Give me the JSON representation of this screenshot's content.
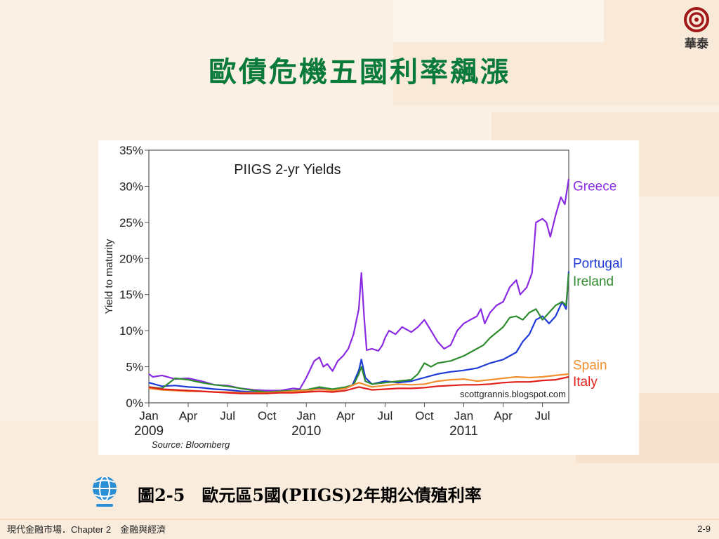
{
  "slide": {
    "title": "歐債危機五國利率飆漲",
    "logo_text": "華泰",
    "caption": "圖2-5　歐元區5國(PIIGS)2年期公債殖利率",
    "footer_left": "現代金融市場．Chapter 2　金融與經濟",
    "page_number": "2-9"
  },
  "chart_data": {
    "type": "line",
    "title": "PIIGS 2-yr Yields",
    "ylabel": "Yield to maturity",
    "source": "Source: Bloomberg",
    "watermark": "scottgrannis.blogspot.com",
    "ylim": [
      0,
      35
    ],
    "xlim": [
      0,
      31
    ],
    "y_ticks": [
      "0%",
      "5%",
      "10%",
      "15%",
      "20%",
      "25%",
      "30%",
      "35%"
    ],
    "x_ticks": [
      {
        "x": 0,
        "label": "Jan"
      },
      {
        "x": 3,
        "label": "Apr"
      },
      {
        "x": 6,
        "label": "Jul"
      },
      {
        "x": 9,
        "label": "Oct"
      },
      {
        "x": 12,
        "label": "Jan"
      },
      {
        "x": 15,
        "label": "Apr"
      },
      {
        "x": 18,
        "label": "Jul"
      },
      {
        "x": 21,
        "label": "Oct"
      },
      {
        "x": 24,
        "label": "Jan"
      },
      {
        "x": 27,
        "label": "Apr"
      },
      {
        "x": 30,
        "label": "Jul"
      }
    ],
    "year_labels": [
      {
        "x": 0,
        "label": "2009"
      },
      {
        "x": 12,
        "label": "2010"
      },
      {
        "x": 24,
        "label": "2011"
      }
    ],
    "series": [
      {
        "name": "Greece",
        "color": "#8a2be2",
        "points": [
          [
            0,
            4.0
          ],
          [
            0.3,
            3.6
          ],
          [
            1,
            3.8
          ],
          [
            2,
            3.3
          ],
          [
            3,
            3.4
          ],
          [
            4,
            3.0
          ],
          [
            5,
            2.5
          ],
          [
            6,
            2.4
          ],
          [
            7,
            2.0
          ],
          [
            8,
            1.8
          ],
          [
            9,
            1.7
          ],
          [
            10,
            1.7
          ],
          [
            11,
            2.0
          ],
          [
            11.5,
            1.9
          ],
          [
            12,
            3.5
          ],
          [
            12.6,
            5.8
          ],
          [
            13,
            6.3
          ],
          [
            13.3,
            5.0
          ],
          [
            13.6,
            5.4
          ],
          [
            14,
            4.4
          ],
          [
            14.4,
            5.8
          ],
          [
            14.8,
            6.5
          ],
          [
            15.2,
            7.5
          ],
          [
            15.6,
            9.5
          ],
          [
            16,
            13.0
          ],
          [
            16.2,
            18.0
          ],
          [
            16.4,
            12.0
          ],
          [
            16.6,
            7.3
          ],
          [
            17,
            7.5
          ],
          [
            17.5,
            7.2
          ],
          [
            17.8,
            8.0
          ],
          [
            18,
            9.0
          ],
          [
            18.3,
            10.0
          ],
          [
            18.8,
            9.5
          ],
          [
            19.3,
            10.5
          ],
          [
            20,
            9.8
          ],
          [
            20.5,
            10.5
          ],
          [
            21,
            11.5
          ],
          [
            21.5,
            10.0
          ],
          [
            22,
            8.5
          ],
          [
            22.5,
            7.5
          ],
          [
            23,
            8.0
          ],
          [
            23.5,
            10.0
          ],
          [
            24,
            11.0
          ],
          [
            24.5,
            11.5
          ],
          [
            25,
            12.0
          ],
          [
            25.3,
            13.0
          ],
          [
            25.6,
            11.0
          ],
          [
            26,
            12.5
          ],
          [
            26.5,
            13.5
          ],
          [
            27,
            14.0
          ],
          [
            27.5,
            16.0
          ],
          [
            28,
            17.0
          ],
          [
            28.3,
            15.0
          ],
          [
            28.8,
            16.0
          ],
          [
            29.2,
            18.0
          ],
          [
            29.5,
            25.0
          ],
          [
            30,
            25.5
          ],
          [
            30.3,
            25.0
          ],
          [
            30.6,
            23.0
          ],
          [
            31,
            26.0
          ],
          [
            31.4,
            28.5
          ],
          [
            31.7,
            27.5
          ],
          [
            32,
            31.0
          ]
        ]
      },
      {
        "name": "Portugal",
        "color": "#1f3ad6",
        "points": [
          [
            0,
            2.8
          ],
          [
            1,
            2.3
          ],
          [
            2,
            2.4
          ],
          [
            3,
            2.2
          ],
          [
            4,
            2.1
          ],
          [
            5,
            1.9
          ],
          [
            6,
            1.8
          ],
          [
            7,
            1.6
          ],
          [
            8,
            1.5
          ],
          [
            9,
            1.4
          ],
          [
            10,
            1.5
          ],
          [
            11,
            1.5
          ],
          [
            12,
            1.6
          ],
          [
            13,
            2.0
          ],
          [
            14,
            1.7
          ],
          [
            15,
            2.0
          ],
          [
            15.5,
            2.4
          ],
          [
            16,
            4.5
          ],
          [
            16.2,
            6.0
          ],
          [
            16.5,
            3.5
          ],
          [
            17,
            2.6
          ],
          [
            18,
            3.0
          ],
          [
            19,
            2.8
          ],
          [
            20,
            3.0
          ],
          [
            21,
            3.5
          ],
          [
            22,
            4.0
          ],
          [
            23,
            4.3
          ],
          [
            24,
            4.5
          ],
          [
            25,
            4.8
          ],
          [
            26,
            5.5
          ],
          [
            27,
            6.0
          ],
          [
            28,
            7.0
          ],
          [
            28.5,
            8.5
          ],
          [
            29,
            9.5
          ],
          [
            29.5,
            11.5
          ],
          [
            30,
            12.0
          ],
          [
            30.5,
            11.0
          ],
          [
            31,
            12.0
          ],
          [
            31.5,
            14.0
          ],
          [
            31.8,
            13.0
          ],
          [
            32,
            18.2
          ]
        ]
      },
      {
        "name": "Ireland",
        "color": "#2e8b2e",
        "points": [
          [
            0,
            2.2
          ],
          [
            1,
            2.0
          ],
          [
            2,
            3.4
          ],
          [
            3,
            3.2
          ],
          [
            4,
            2.8
          ],
          [
            5,
            2.5
          ],
          [
            6,
            2.3
          ],
          [
            7,
            2.0
          ],
          [
            8,
            1.7
          ],
          [
            9,
            1.5
          ],
          [
            10,
            1.6
          ],
          [
            11,
            1.7
          ],
          [
            12,
            1.8
          ],
          [
            13,
            2.2
          ],
          [
            14,
            1.9
          ],
          [
            15,
            2.2
          ],
          [
            15.6,
            2.5
          ],
          [
            16,
            4.0
          ],
          [
            16.2,
            5.0
          ],
          [
            16.5,
            3.0
          ],
          [
            17,
            2.6
          ],
          [
            18,
            2.8
          ],
          [
            19,
            3.0
          ],
          [
            20,
            3.2
          ],
          [
            20.5,
            4.0
          ],
          [
            21,
            5.5
          ],
          [
            21.5,
            5.0
          ],
          [
            22,
            5.5
          ],
          [
            23,
            5.8
          ],
          [
            24,
            6.5
          ],
          [
            25,
            7.5
          ],
          [
            25.5,
            8.0
          ],
          [
            26,
            9.0
          ],
          [
            27,
            10.5
          ],
          [
            27.5,
            11.8
          ],
          [
            28,
            12.0
          ],
          [
            28.5,
            11.5
          ],
          [
            29,
            12.5
          ],
          [
            29.5,
            13.0
          ],
          [
            30,
            11.5
          ],
          [
            30.5,
            12.5
          ],
          [
            31,
            13.5
          ],
          [
            31.5,
            14.0
          ],
          [
            31.8,
            13.5
          ],
          [
            32,
            18.0
          ]
        ]
      },
      {
        "name": "Spain",
        "color": "#f09030",
        "points": [
          [
            0,
            2.0
          ],
          [
            1,
            1.8
          ],
          [
            2,
            1.7
          ],
          [
            3,
            1.6
          ],
          [
            4,
            1.6
          ],
          [
            5,
            1.5
          ],
          [
            6,
            1.5
          ],
          [
            7,
            1.4
          ],
          [
            8,
            1.4
          ],
          [
            9,
            1.4
          ],
          [
            10,
            1.5
          ],
          [
            11,
            1.6
          ],
          [
            12,
            1.7
          ],
          [
            13,
            1.9
          ],
          [
            14,
            1.7
          ],
          [
            15,
            2.0
          ],
          [
            16,
            2.8
          ],
          [
            17,
            2.2
          ],
          [
            18,
            2.4
          ],
          [
            19,
            2.6
          ],
          [
            20,
            2.5
          ],
          [
            21,
            2.6
          ],
          [
            22,
            3.0
          ],
          [
            23,
            3.2
          ],
          [
            24,
            3.3
          ],
          [
            25,
            3.0
          ],
          [
            26,
            3.2
          ],
          [
            27,
            3.4
          ],
          [
            28,
            3.6
          ],
          [
            29,
            3.5
          ],
          [
            30,
            3.6
          ],
          [
            31,
            3.8
          ],
          [
            32,
            4.0
          ]
        ]
      },
      {
        "name": "Italy",
        "color": "#e0201a",
        "points": [
          [
            0,
            2.2
          ],
          [
            1,
            1.9
          ],
          [
            2,
            1.8
          ],
          [
            3,
            1.7
          ],
          [
            4,
            1.6
          ],
          [
            5,
            1.5
          ],
          [
            6,
            1.4
          ],
          [
            7,
            1.3
          ],
          [
            8,
            1.3
          ],
          [
            9,
            1.3
          ],
          [
            10,
            1.4
          ],
          [
            11,
            1.4
          ],
          [
            12,
            1.5
          ],
          [
            13,
            1.6
          ],
          [
            14,
            1.5
          ],
          [
            15,
            1.7
          ],
          [
            16,
            2.2
          ],
          [
            17,
            1.8
          ],
          [
            18,
            1.9
          ],
          [
            19,
            2.0
          ],
          [
            20,
            2.0
          ],
          [
            21,
            2.1
          ],
          [
            22,
            2.3
          ],
          [
            23,
            2.4
          ],
          [
            24,
            2.5
          ],
          [
            25,
            2.5
          ],
          [
            26,
            2.6
          ],
          [
            27,
            2.8
          ],
          [
            28,
            2.9
          ],
          [
            29,
            2.9
          ],
          [
            30,
            3.1
          ],
          [
            31,
            3.2
          ],
          [
            32,
            3.6
          ]
        ]
      }
    ],
    "legend": [
      {
        "name": "Greece",
        "color": "#8a2be2"
      },
      {
        "name": "Portugal",
        "color": "#1f3ad6"
      },
      {
        "name": "Ireland",
        "color": "#2e8b2e"
      },
      {
        "name": "Spain",
        "color": "#f09030"
      },
      {
        "name": "Italy",
        "color": "#e0201a"
      }
    ]
  }
}
